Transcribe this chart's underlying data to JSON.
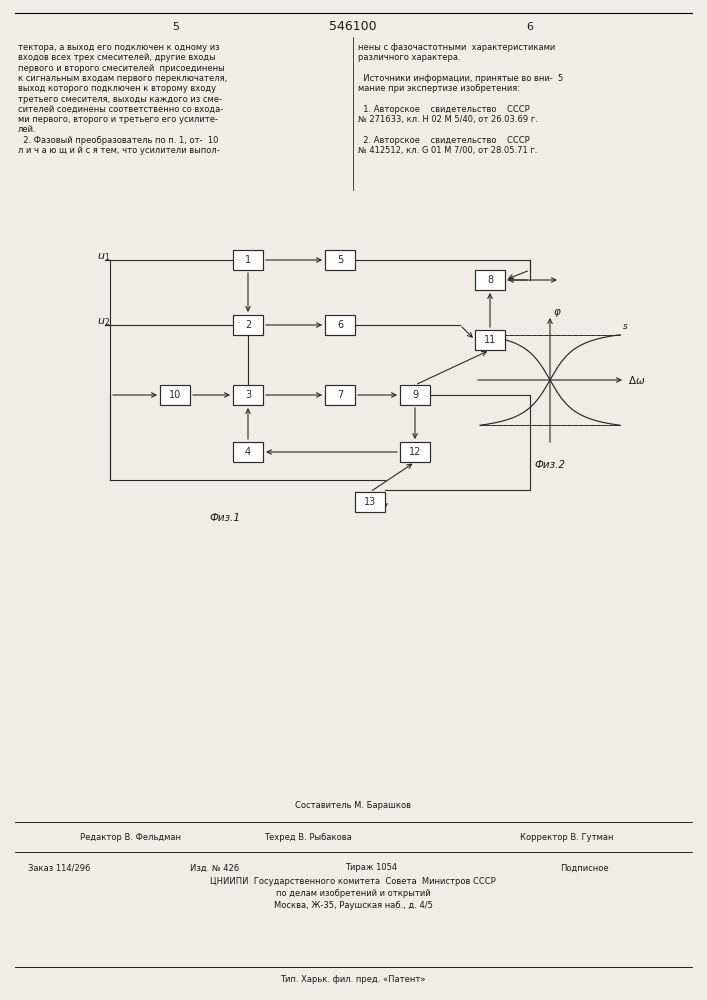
{
  "title": "546100",
  "page_left": "5",
  "page_right": "6",
  "bg_color": "#f0ede8",
  "text_color": "#1a1a1a",
  "fig1_label": "Физ.1",
  "fig2_label": "Физ.2",
  "footer_line1": "Составитель М. Барашков",
  "footer_editor": "Редактор В. Фельдман",
  "footer_techred": "Техред В. Рыбакова",
  "footer_corrector": "Корректор В. Гутман",
  "footer_order": "Заказ 114/296",
  "footer_izd": "Изд. № 426",
  "footer_tirazh": "Тираж 1054",
  "footer_podp": "Подписное",
  "footer_line4": "ЦНИИПИ  Государственного комитета  Совета  Министров СССР",
  "footer_line5": "по делам изобретений и открытий",
  "footer_line6": "Москва, Ж-35, Раушская наб., д. 4/5",
  "footer_line7": "Тип. Харьк. фил. пред. «Патент»"
}
